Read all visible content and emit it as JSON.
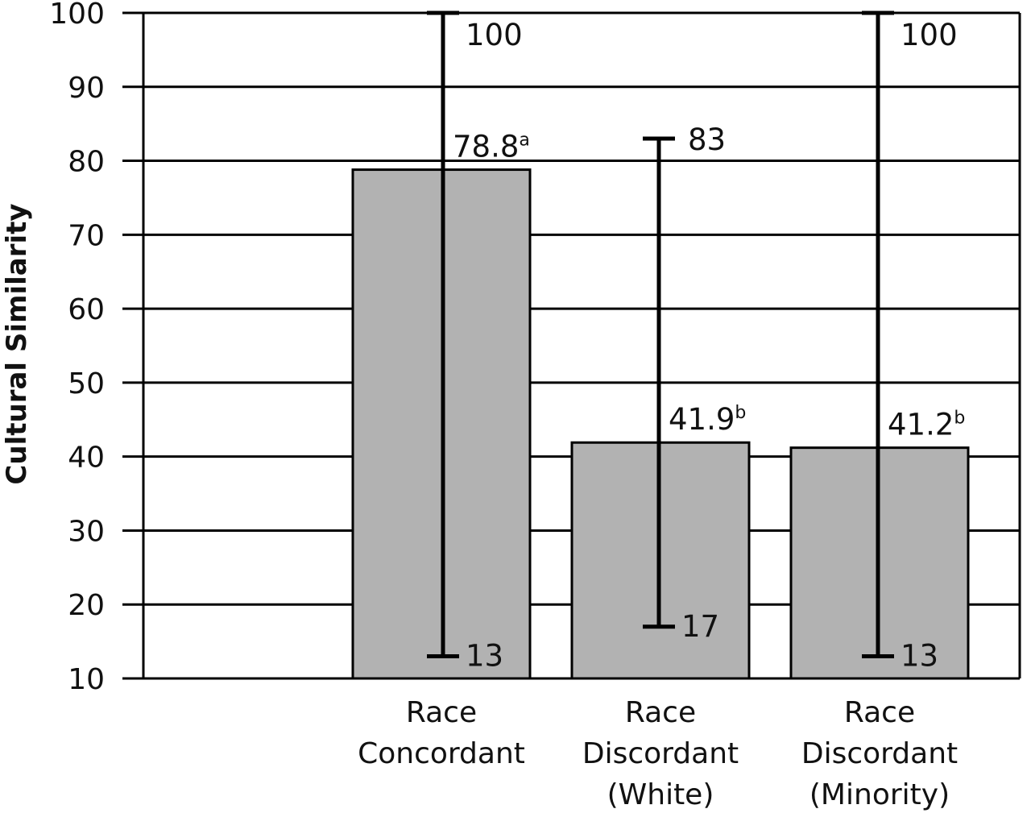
{
  "chart_data": {
    "type": "bar",
    "ylabel": "Cultural Similarity",
    "ylim": [
      10,
      100
    ],
    "yticks": [
      10,
      20,
      30,
      40,
      50,
      60,
      70,
      80,
      90,
      100
    ],
    "grid": true,
    "categories": [
      [
        "Race",
        "Concordant"
      ],
      [
        "Race",
        "Discordant",
        "(White)"
      ],
      [
        "Race",
        "Discordant",
        "(Minority)"
      ]
    ],
    "values": [
      78.8,
      41.9,
      41.2
    ],
    "value_labels": [
      "78.8",
      "41.9",
      "41.2"
    ],
    "superscripts": [
      "a",
      "b",
      "b"
    ],
    "ranges": [
      {
        "min": 13,
        "max": 100
      },
      {
        "min": 17,
        "max": 83
      },
      {
        "min": 13,
        "max": 100
      }
    ],
    "colors": {
      "bar": "#b2b2b2",
      "stroke": "#000000"
    }
  }
}
